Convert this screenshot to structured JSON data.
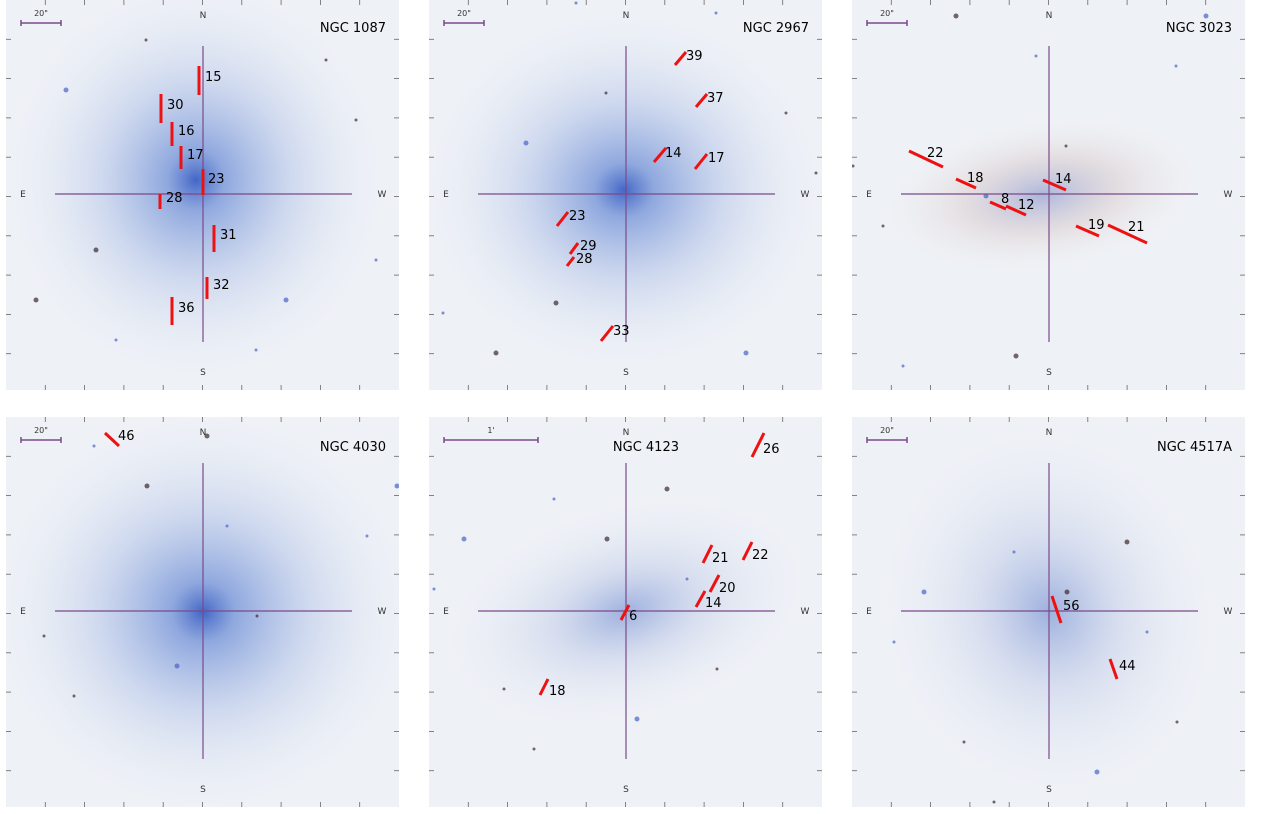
{
  "panels": [
    {
      "title": "NGC 1087",
      "scale": "20\"",
      "compass": {
        "n": "N",
        "e": "E",
        "w": "W",
        "s": "S"
      },
      "slits": [
        "15",
        "30",
        "16",
        "17",
        "23",
        "28",
        "31",
        "32",
        "36"
      ]
    },
    {
      "title": "NGC 2967",
      "scale": "20\"",
      "compass": {
        "n": "N",
        "e": "E",
        "w": "W",
        "s": "S"
      },
      "slits": [
        "39",
        "37",
        "14",
        "17",
        "23",
        "29",
        "28",
        "33"
      ]
    },
    {
      "title": "NGC 3023",
      "scale": "20\"",
      "compass": {
        "n": "N",
        "e": "E",
        "w": "W",
        "s": "S"
      },
      "slits": [
        "22",
        "18",
        "8",
        "12",
        "14",
        "19",
        "21"
      ]
    },
    {
      "title": "NGC 4030",
      "scale": "20\"",
      "compass": {
        "n": "N",
        "e": "E",
        "w": "W",
        "s": "S"
      },
      "slits": [
        "46"
      ]
    },
    {
      "title": "NGC 4123",
      "scale": "1'",
      "compass": {
        "n": "N",
        "e": "E",
        "w": "W",
        "s": "S"
      },
      "slits": [
        "26",
        "21",
        "22",
        "20",
        "14",
        "6",
        "18"
      ]
    },
    {
      "title": "NGC 4517A",
      "scale": "20\"",
      "compass": {
        "n": "N",
        "e": "E",
        "w": "W",
        "s": "S"
      },
      "slits": [
        "56",
        "44"
      ]
    }
  ]
}
